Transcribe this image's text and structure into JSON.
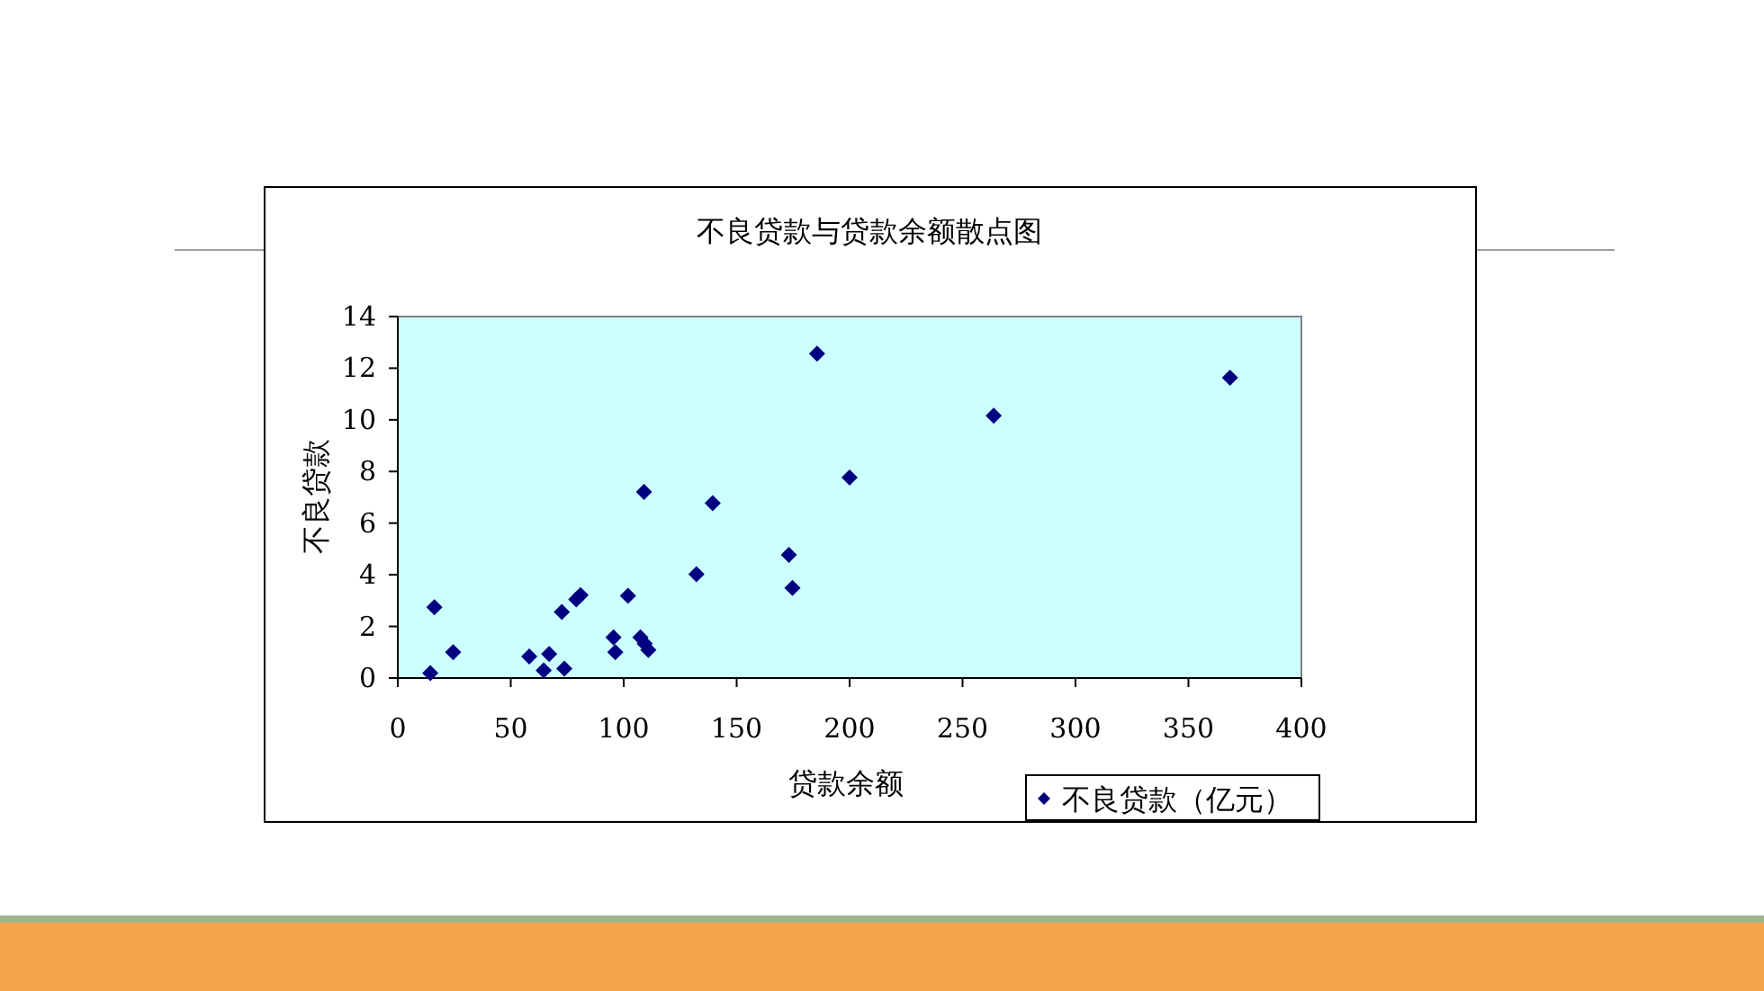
{
  "chart_data": {
    "type": "scatter",
    "title": "不良贷款与贷款余额散点图",
    "xlabel": "贷款余额",
    "ylabel": "不良贷款",
    "legend": "bottom right",
    "marker": "diamond",
    "xlim": [
      0,
      400
    ],
    "xticks": [
      0,
      50,
      100,
      150,
      200,
      250,
      300,
      350,
      400
    ],
    "ylim": [
      0,
      14
    ],
    "yticks": [
      0,
      2,
      4,
      6,
      8,
      10,
      12,
      14
    ],
    "series": [
      {
        "name": "不良贷款（亿元）",
        "color": "#000080",
        "x": [
          14.4,
          16.2,
          24.5,
          58.2,
          64.6,
          67.0,
          72.6,
          73.7,
          79.0,
          80.9,
          95.5,
          96.3,
          101.9,
          107.4,
          109.0,
          109.3,
          110.9,
          132.2,
          139.4,
          173.1,
          174.7,
          185.6,
          200.0,
          263.8,
          368.4
        ],
        "values": [
          0.19,
          2.74,
          1.0,
          0.84,
          0.3,
          0.93,
          2.56,
          0.37,
          3.05,
          3.21,
          1.58,
          1.0,
          3.19,
          1.58,
          7.21,
          1.33,
          1.09,
          4.02,
          6.77,
          4.77,
          3.49,
          12.56,
          7.77,
          10.16,
          11.63
        ]
      }
    ]
  }
}
